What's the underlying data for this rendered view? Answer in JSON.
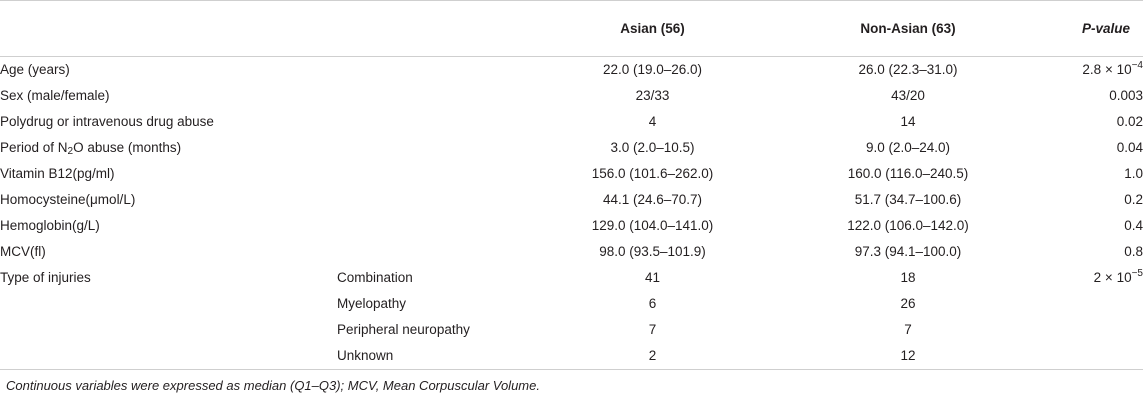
{
  "header": {
    "col_asian": "Asian (56)",
    "col_nonasian": "Non-Asian (63)",
    "col_pvalue": "P-value"
  },
  "rows": [
    {
      "variable": "Age (years)",
      "sub": "",
      "asian": "22.0 (19.0–26.0)",
      "nonasian": "26.0 (22.3–31.0)",
      "p_base": "2.8 × 10",
      "p_exp": "−4"
    },
    {
      "variable": "Sex (male/female)",
      "sub": "",
      "asian": "23/33",
      "nonasian": "43/20",
      "p_base": "0.003",
      "p_exp": ""
    },
    {
      "variable": "Polydrug or intravenous drug abuse",
      "sub": "",
      "asian": "4",
      "nonasian": "14",
      "p_base": "0.02",
      "p_exp": ""
    },
    {
      "variable_pre": "Period of N",
      "variable_sub": "2",
      "variable_post": "O abuse (months)",
      "sub": "",
      "asian": "3.0 (2.0–10.5)",
      "nonasian": "9.0 (2.0–24.0)",
      "p_base": "0.04",
      "p_exp": ""
    },
    {
      "variable": "Vitamin B12(pg/ml)",
      "sub": "",
      "asian": "156.0 (101.6–262.0)",
      "nonasian": "160.0 (116.0–240.5)",
      "p_base": "1.0",
      "p_exp": ""
    },
    {
      "variable": "Homocysteine(μmol/L)",
      "sub": "",
      "asian": "44.1 (24.6–70.7)",
      "nonasian": "51.7 (34.7–100.6)",
      "p_base": "0.2",
      "p_exp": ""
    },
    {
      "variable": "Hemoglobin(g/L)",
      "sub": "",
      "asian": "129.0 (104.0–141.0)",
      "nonasian": "122.0 (106.0–142.0)",
      "p_base": "0.4",
      "p_exp": ""
    },
    {
      "variable": "MCV(fl)",
      "sub": "",
      "asian": "98.0 (93.5–101.9)",
      "nonasian": "97.3 (94.1–100.0)",
      "p_base": "0.8",
      "p_exp": ""
    },
    {
      "variable": "Type of injuries",
      "sub": "Combination",
      "asian": "41",
      "nonasian": "18",
      "p_base": "2 × 10",
      "p_exp": "−5"
    },
    {
      "variable": "",
      "sub": "Myelopathy",
      "asian": "6",
      "nonasian": "26",
      "p_base": "",
      "p_exp": ""
    },
    {
      "variable": "",
      "sub": "Peripheral neuropathy",
      "asian": "7",
      "nonasian": "7",
      "p_base": "",
      "p_exp": ""
    },
    {
      "variable": "",
      "sub": "Unknown",
      "asian": "2",
      "nonasian": "12",
      "p_base": "",
      "p_exp": ""
    }
  ],
  "footnote": "Continuous variables were expressed as median (Q1–Q3); MCV, Mean Corpuscular Volume."
}
